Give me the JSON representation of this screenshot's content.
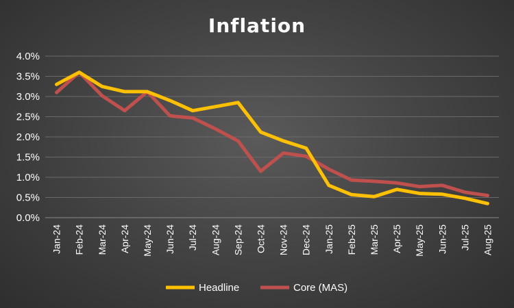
{
  "chart_data": {
    "type": "line",
    "title": "Inflation",
    "categories": [
      "Jan-24",
      "Feb-24",
      "Mar-24",
      "Apr-24",
      "May-24",
      "Jun-24",
      "Jul-24",
      "Aug-24",
      "Sep-24",
      "Oct-24",
      "Nov-24",
      "Dec-24",
      "Jan-25",
      "Feb-25",
      "Mar-25",
      "Apr-25",
      "May-25",
      "Jun-25",
      "Jul-25",
      "Aug-25"
    ],
    "ylim": [
      0,
      4.0
    ],
    "yticks": [
      "0.0%",
      "0.5%",
      "1.0%",
      "1.5%",
      "2.0%",
      "2.5%",
      "3.0%",
      "3.5%",
      "4.0%"
    ],
    "grid": true,
    "legend_position": "bottom",
    "series": [
      {
        "name": "Headline",
        "color": "#ffc000",
        "values": [
          3.3,
          3.6,
          3.25,
          3.12,
          3.12,
          2.9,
          2.65,
          2.75,
          2.85,
          2.12,
          1.9,
          1.72,
          0.8,
          0.57,
          0.52,
          0.7,
          0.6,
          0.58,
          0.48,
          0.35
        ]
      },
      {
        "name": "Core (MAS)",
        "color": "#c0504d",
        "values": [
          3.1,
          3.6,
          3.02,
          2.65,
          3.12,
          2.52,
          2.47,
          2.2,
          1.9,
          1.15,
          1.6,
          1.52,
          1.2,
          0.93,
          0.9,
          0.86,
          0.77,
          0.8,
          0.63,
          0.55
        ]
      }
    ]
  }
}
